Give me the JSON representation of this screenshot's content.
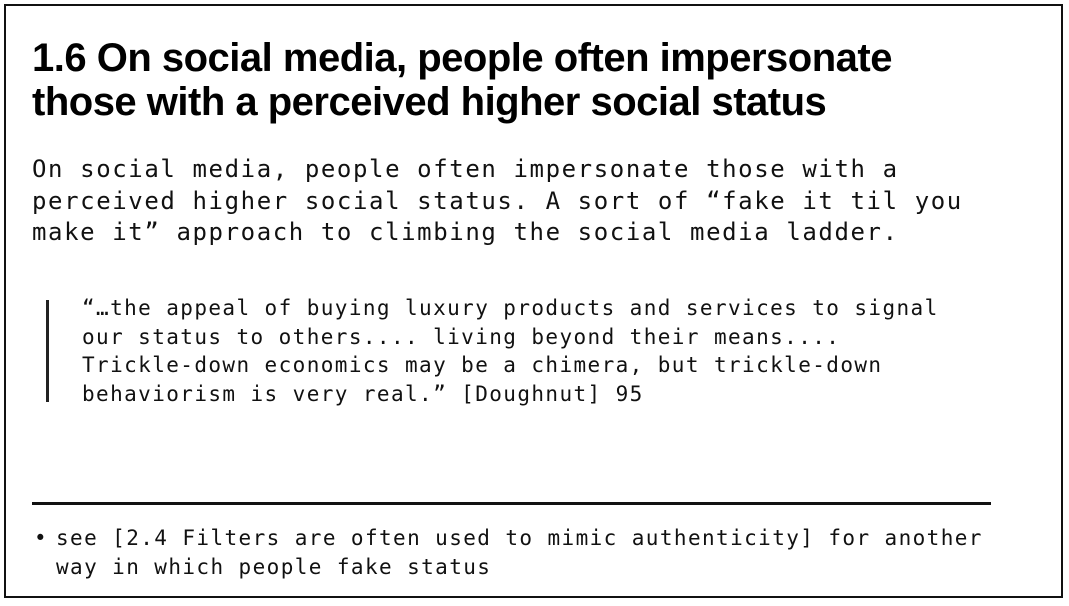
{
  "card": {
    "title_lines": [
      "1.6 On social media, people often impersonate",
      "those with a perceived higher social status"
    ],
    "body_lines": [
      "On social media, people often impersonate those with a",
      "perceived higher social status. A sort of “fake it til you",
      "make it” approach to climbing the social media ladder."
    ],
    "quote_lines": [
      "“…the appeal of buying luxury products and services to signal",
      "our status to others.... living beyond their means....",
      "Trickle-down economics may be a chimera, but trickle-down",
      "behaviorism is very real.” [Doughnut] 95"
    ],
    "note": {
      "bullet": "•",
      "lines": [
        "see [2.4 Filters are often used to mimic authenticity] for another",
        "way in which people fake status"
      ]
    }
  }
}
